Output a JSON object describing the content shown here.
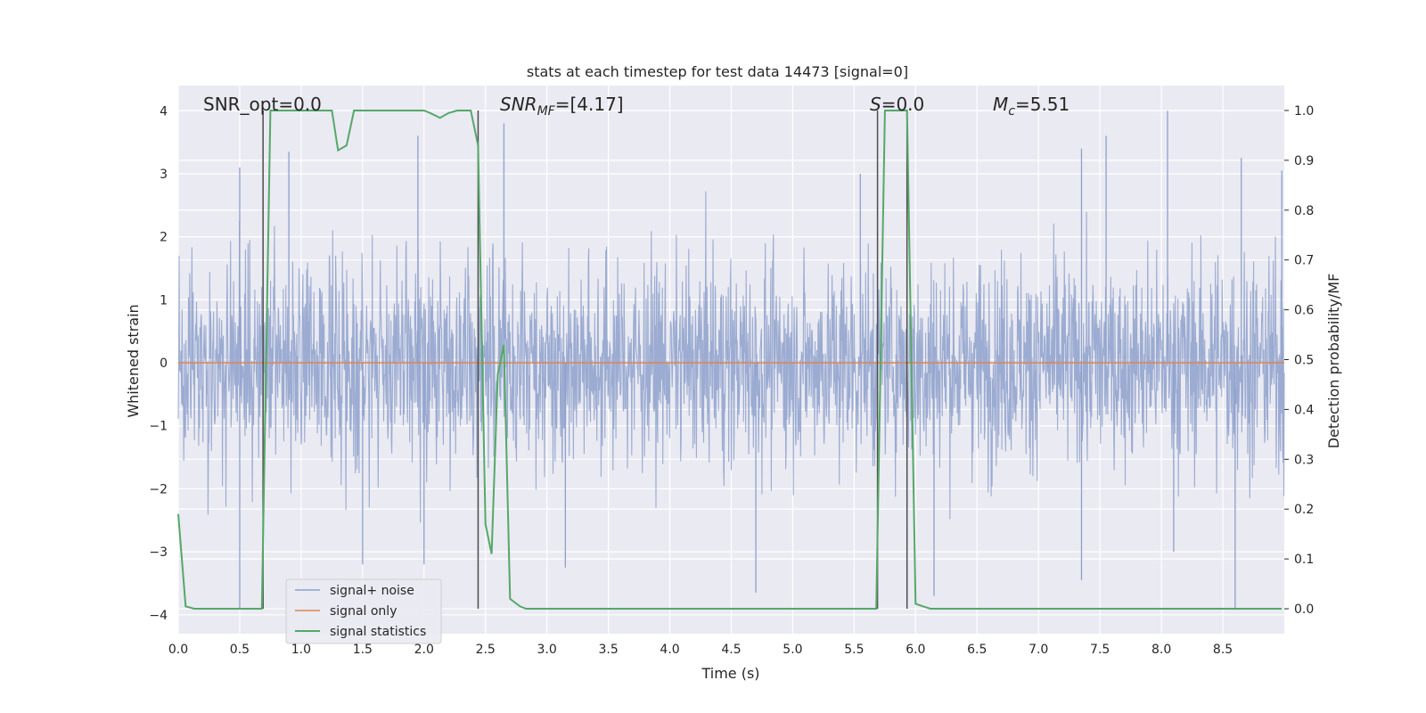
{
  "chart_data": {
    "type": "line",
    "title": "stats at each timestep for test data 14473 [signal=0]",
    "xlabel": "Time (s)",
    "ylabel_left": "Whitened strain",
    "ylabel_right": "Detection probability/MF",
    "xlim": [
      0,
      9.0
    ],
    "ylim_left": [
      -4.3,
      4.4
    ],
    "ylim_right": [
      -0.05,
      1.05
    ],
    "grid": true,
    "legend_position": "lower-left",
    "x_ticks": [
      "0.0",
      "0.5",
      "1.0",
      "1.5",
      "2.0",
      "2.5",
      "3.0",
      "3.5",
      "4.0",
      "4.5",
      "5.0",
      "5.5",
      "6.0",
      "6.5",
      "7.0",
      "7.5",
      "8.0",
      "8.5"
    ],
    "y_ticks_left": [
      "4",
      "3",
      "2",
      "1",
      "0",
      "−1",
      "−2",
      "−3",
      "−4"
    ],
    "y_ticks_right": [
      "1.0",
      "0.9",
      "0.8",
      "0.7",
      "0.6",
      "0.5",
      "0.4",
      "0.3",
      "0.2",
      "0.1",
      "0.0"
    ],
    "annotations": {
      "snr_opt": "SNR_opt=0.0",
      "snr_mf_main": "SNR",
      "snr_mf_sub": "MF",
      "snr_mf_value": "=[4.17]",
      "s_main": "S",
      "s_value": "=0.0",
      "mc_main": "M",
      "mc_sub": "c",
      "mc_value": "=5.51"
    },
    "series": [
      {
        "name": "signal+ noise",
        "color": "#8da0cb",
        "kind": "noise",
        "envelope_top_approx": 2.2,
        "envelope_bottom_approx": -2.1,
        "peaks": [
          [
            0.5,
            3.1
          ],
          [
            0.9,
            3.35
          ],
          [
            1.95,
            3.6
          ],
          [
            2.65,
            3.8
          ],
          [
            5.55,
            3.0
          ],
          [
            7.35,
            3.4
          ],
          [
            7.55,
            3.6
          ],
          [
            8.05,
            4.0
          ],
          [
            8.65,
            3.25
          ],
          [
            8.98,
            3.05
          ]
        ],
        "troughs": [
          [
            0.5,
            -3.9
          ],
          [
            1.5,
            -3.2
          ],
          [
            2.0,
            -3.2
          ],
          [
            3.15,
            -3.25
          ],
          [
            4.7,
            -3.65
          ],
          [
            6.15,
            -3.7
          ],
          [
            7.35,
            -3.45
          ],
          [
            8.1,
            -3.0
          ],
          [
            8.6,
            -3.9
          ]
        ]
      },
      {
        "name": "signal only",
        "color": "#dd8452",
        "axis": "left",
        "x": [
          0,
          9.0
        ],
        "y": [
          0.0,
          0.0
        ]
      },
      {
        "name": "signal statistics",
        "color": "#55a868",
        "axis": "right",
        "x": [
          0.0,
          0.06,
          0.13,
          0.68,
          0.75,
          0.8,
          1.25,
          1.3,
          1.37,
          1.43,
          1.48,
          2.0,
          2.05,
          2.13,
          2.2,
          2.27,
          2.38,
          2.44,
          2.5,
          2.55,
          2.6,
          2.65,
          2.7,
          2.78,
          2.83,
          5.68,
          5.75,
          5.93,
          6.0,
          6.06,
          6.12,
          8.98
        ],
        "y": [
          0.19,
          0.005,
          0.0,
          0.0,
          1.0,
          1.0,
          1.0,
          0.92,
          0.93,
          1.0,
          1.0,
          1.0,
          0.995,
          0.985,
          0.995,
          1.0,
          1.0,
          0.93,
          0.17,
          0.11,
          0.47,
          0.53,
          0.02,
          0.005,
          0.0,
          0.0,
          1.0,
          1.0,
          0.01,
          0.005,
          0.0,
          0.0
        ]
      }
    ],
    "vertical_lines": [
      0.69,
      2.44,
      5.69,
      5.93
    ],
    "vertical_lines_color": "#4d4d4d"
  }
}
